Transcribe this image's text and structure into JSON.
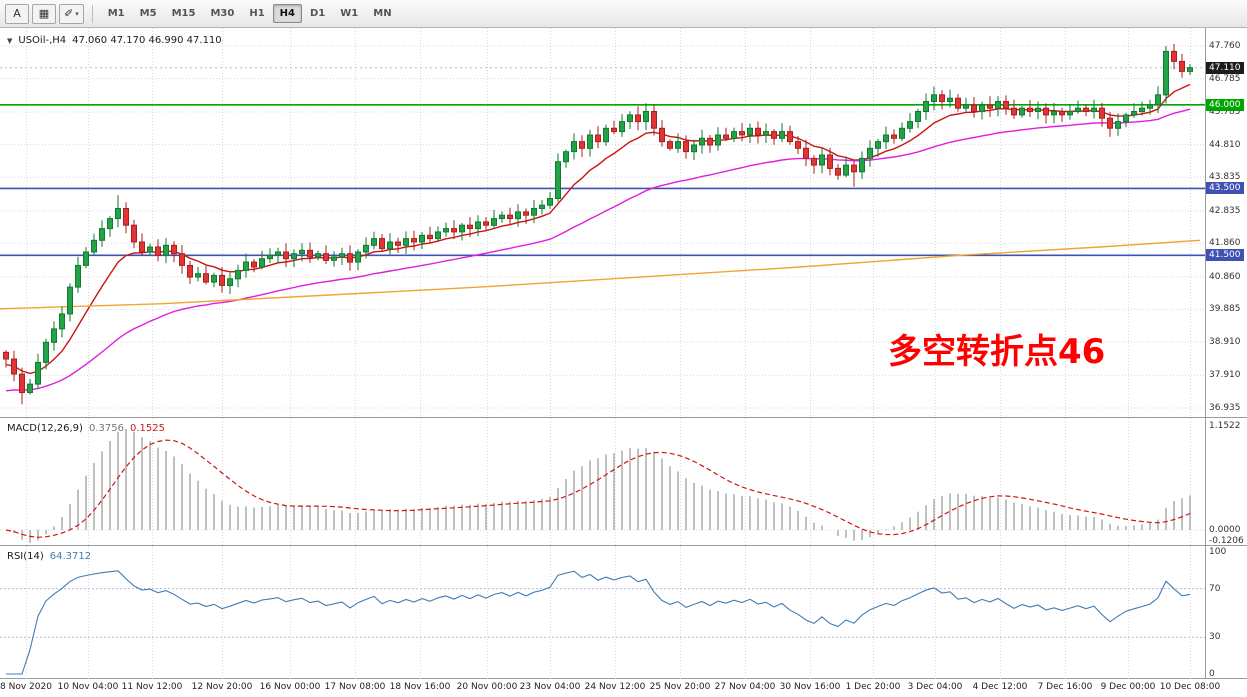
{
  "toolbar": {
    "tool_buttons": [
      {
        "label": "A"
      },
      {
        "label": "▦"
      },
      {
        "label": "✐"
      }
    ],
    "dropdown_icon": "▾",
    "timeframes": [
      "M1",
      "M5",
      "M15",
      "M30",
      "H1",
      "H4",
      "D1",
      "W1",
      "MN"
    ],
    "active_timeframe": "H4"
  },
  "chart": {
    "header": {
      "symbol": "USOil-,H4",
      "ohlc": "47.060 47.170 46.990 47.110"
    },
    "annotation": "多空转折点46",
    "current_price": {
      "label": "47.110",
      "value": 47.11
    },
    "price_axis": [
      {
        "label": "47.760",
        "value": 47.76
      },
      {
        "label": "46.785",
        "value": 46.785
      },
      {
        "label": "45.785",
        "value": 45.785
      },
      {
        "label": "44.810",
        "value": 44.81
      },
      {
        "label": "43.835",
        "value": 43.835
      },
      {
        "label": "42.835",
        "value": 42.835
      },
      {
        "label": "41.860",
        "value": 41.86
      },
      {
        "label": "40.860",
        "value": 40.86
      },
      {
        "label": "39.885",
        "value": 39.885
      },
      {
        "label": "38.910",
        "value": 38.91
      },
      {
        "label": "37.910",
        "value": 37.91
      },
      {
        "label": "36.935",
        "value": 36.935
      }
    ],
    "hlines": [
      {
        "label": "46.000",
        "value": 46.0,
        "color": "#00a600"
      },
      {
        "label": "43.500",
        "value": 43.5,
        "color": "#3f51b5"
      },
      {
        "label": "41.500",
        "value": 41.5,
        "color": "#3f51b5"
      }
    ],
    "colors": {
      "bull": "#22a347",
      "bull_stroke": "#117a31",
      "bear": "#e23434",
      "bear_stroke": "#a81f1f",
      "grid": "#d8d8d8",
      "macd_hist": "#b0b0b0",
      "macd_signal": "#d21414",
      "rsi_line": "#3f7cb6",
      "rsi_level": "#b9b9d9",
      "current_badge": "#1c1c1c"
    }
  },
  "chart_data": {
    "type": "candlestick",
    "symbol": "USOil",
    "timeframe": "H4",
    "title": "USOil-,H4 47.060 47.170 46.990 47.110",
    "y_range": [
      36.935,
      47.76
    ],
    "first_open": 38.6,
    "closes": [
      38.4,
      37.95,
      37.4,
      37.65,
      38.3,
      38.9,
      39.3,
      39.75,
      40.55,
      41.2,
      41.6,
      41.95,
      42.3,
      42.6,
      42.9,
      42.4,
      41.9,
      41.6,
      41.75,
      41.5,
      41.8,
      41.55,
      41.2,
      40.85,
      40.95,
      40.7,
      40.9,
      40.6,
      40.8,
      41.05,
      41.3,
      41.15,
      41.4,
      41.5,
      41.6,
      41.4,
      41.55,
      41.65,
      41.45,
      41.55,
      41.35,
      41.45,
      41.55,
      41.3,
      41.6,
      41.8,
      42.0,
      41.7,
      41.9,
      41.8,
      42.0,
      41.9,
      42.1,
      42.0,
      42.2,
      42.3,
      42.2,
      42.4,
      42.3,
      42.5,
      42.4,
      42.6,
      42.7,
      42.6,
      42.8,
      42.7,
      42.9,
      43.0,
      43.2,
      44.3,
      44.6,
      44.9,
      44.7,
      45.1,
      44.9,
      45.3,
      45.2,
      45.5,
      45.7,
      45.5,
      45.8,
      45.3,
      44.9,
      44.7,
      44.9,
      44.6,
      44.8,
      45.0,
      44.8,
      45.1,
      45.0,
      45.2,
      45.1,
      45.3,
      45.1,
      45.2,
      45.0,
      45.2,
      44.9,
      44.7,
      44.4,
      44.2,
      44.5,
      44.1,
      43.9,
      44.2,
      44.0,
      44.4,
      44.7,
      44.9,
      45.1,
      45.0,
      45.3,
      45.5,
      45.8,
      46.1,
      46.3,
      46.1,
      46.2,
      45.9,
      46.0,
      45.8,
      46.0,
      45.9,
      46.1,
      45.9,
      45.7,
      45.9,
      45.8,
      45.9,
      45.7,
      45.8,
      45.7,
      45.8,
      45.9,
      45.8,
      45.9,
      45.6,
      45.3,
      45.5,
      45.7,
      45.8,
      45.9,
      46.0,
      46.3,
      47.6,
      47.3,
      47.0,
      47.11
    ],
    "wick_overrides": {
      "2": {
        "low": 37.05
      },
      "14": {
        "high": 43.3
      },
      "80": {
        "high": 46.05
      },
      "106": {
        "low": 43.55
      },
      "116": {
        "high": 46.55
      },
      "145": {
        "high": 47.76
      }
    },
    "moving_averages": [
      {
        "name": "fast-ma",
        "color": "#c81414",
        "type": "ema",
        "period": 10,
        "seed": 38.2
      },
      {
        "name": "slow-ma",
        "color": "#e01ee0",
        "type": "ema",
        "period": 40,
        "seed": 37.4
      },
      {
        "name": "trend-ma",
        "color": "#efa531",
        "type": "anchors",
        "points": [
          [
            0,
            39.9
          ],
          [
            160,
            40.05
          ],
          [
            320,
            40.3
          ],
          [
            480,
            40.55
          ],
          [
            640,
            40.85
          ],
          [
            800,
            41.15
          ],
          [
            960,
            41.5
          ],
          [
            1100,
            41.75
          ],
          [
            1200,
            41.95
          ]
        ]
      }
    ],
    "x_axis": {
      "labels": [
        [
          "8 Nov 2020",
          26
        ],
        [
          "10 Nov 04:00",
          88
        ],
        [
          "11 Nov 12:00",
          152
        ],
        [
          "12 Nov 20:00",
          222
        ],
        [
          "16 Nov 00:00",
          290
        ],
        [
          "17 Nov 08:00",
          355
        ],
        [
          "18 Nov 16:00",
          420
        ],
        [
          "20 Nov 00:00",
          487
        ],
        [
          "23 Nov 04:00",
          550
        ],
        [
          "24 Nov 12:00",
          615
        ],
        [
          "25 Nov 20:00",
          680
        ],
        [
          "27 Nov 04:00",
          745
        ],
        [
          "30 Nov 16:00",
          810
        ],
        [
          "1 Dec 20:00",
          873
        ],
        [
          "3 Dec 04:00",
          935
        ],
        [
          "4 Dec 12:00",
          1000
        ],
        [
          "7 Dec 16:00",
          1065
        ],
        [
          "9 Dec 00:00",
          1128
        ],
        [
          "10 Dec 08:00",
          1190
        ]
      ]
    },
    "macd": {
      "label": "MACD(12,26,9)",
      "value_main": "0.3756",
      "value_signal": "0.1525",
      "fast": 12,
      "slow": 26,
      "signal": 9,
      "range": [
        -0.1206,
        1.1522
      ],
      "axis": [
        {
          "label": "1.1522",
          "value": 1.1522
        },
        {
          "label": "0.0000",
          "value": 0
        },
        {
          "label": "-0.1206",
          "value": -0.1206
        }
      ]
    },
    "rsi": {
      "label": "RSI(14)",
      "value": "64.3712",
      "period": 14,
      "levels": [
        70,
        30
      ],
      "axis": [
        {
          "label": "100",
          "value": 100
        },
        {
          "label": "70",
          "value": 70
        },
        {
          "label": "30",
          "value": 30
        },
        {
          "label": "0",
          "value": 0
        }
      ]
    }
  }
}
